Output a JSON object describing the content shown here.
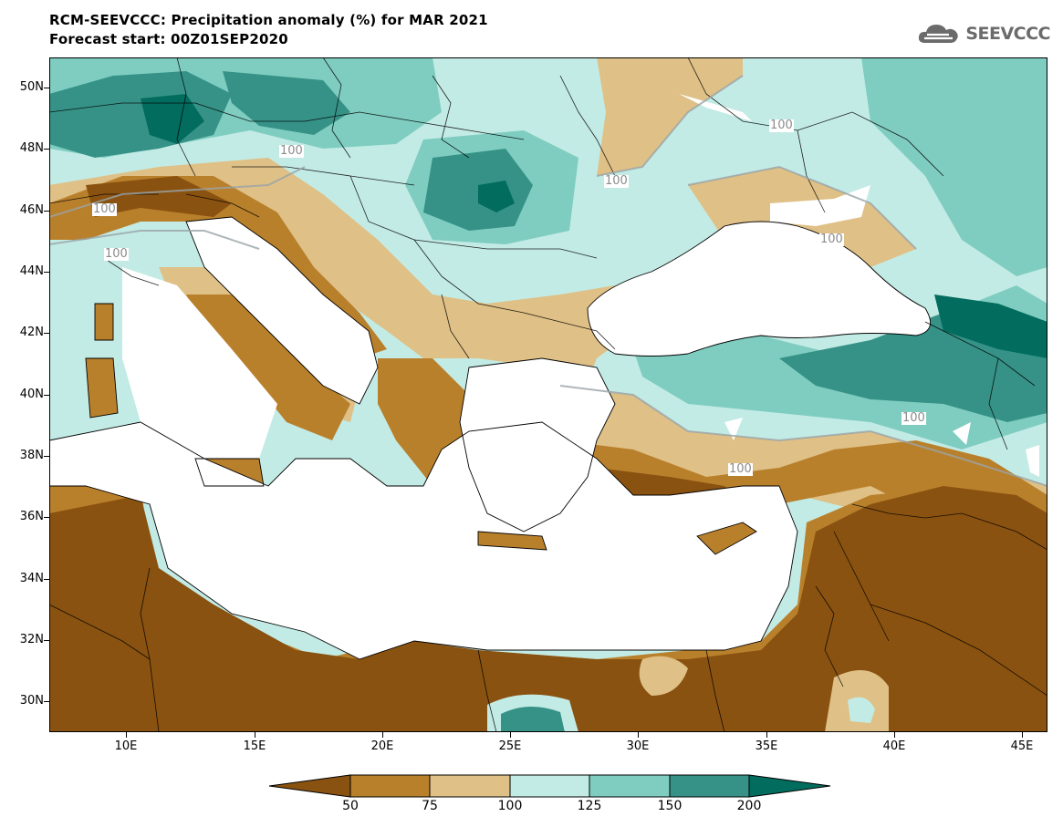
{
  "header": {
    "title": "RCM-SEEVCCC: Precipitation anomaly (%) for MAR 2021",
    "forecast": "Forecast start: 00Z01SEP2020"
  },
  "logo": {
    "text": "SEEVCCC",
    "icon": "cloud-logo-icon"
  },
  "axes": {
    "lat_labels": [
      "50N",
      "48N",
      "46N",
      "44N",
      "42N",
      "40N",
      "38N",
      "36N",
      "34N",
      "32N",
      "30N"
    ],
    "lon_labels": [
      "10E",
      "15E",
      "20E",
      "25E",
      "30E",
      "35E",
      "40E",
      "45E"
    ]
  },
  "contour_labels": [
    "100",
    "100",
    "100",
    "100",
    "100",
    "100",
    "100",
    "100"
  ],
  "colorbar": {
    "labels": [
      "50",
      "75",
      "100",
      "125",
      "150",
      "200"
    ],
    "colors": [
      "#8a5210",
      "#b9802c",
      "#dfc086",
      "#c3ebe5",
      "#7fcdc0",
      "#369287",
      "#026c5e"
    ]
  },
  "map": {
    "projection": "lat-lon",
    "lat_range": [
      29,
      51
    ],
    "lon_range": [
      7,
      46
    ],
    "colors": {
      "sea": "#ffffff",
      "very_dry": "#8a5210",
      "dry": "#b9802c",
      "near_normal_dry": "#dfc086",
      "near_normal_wet": "#c3ebe5",
      "wet": "#7fcdc0",
      "very_wet": "#369287",
      "extreme_wet": "#026c5e"
    }
  }
}
